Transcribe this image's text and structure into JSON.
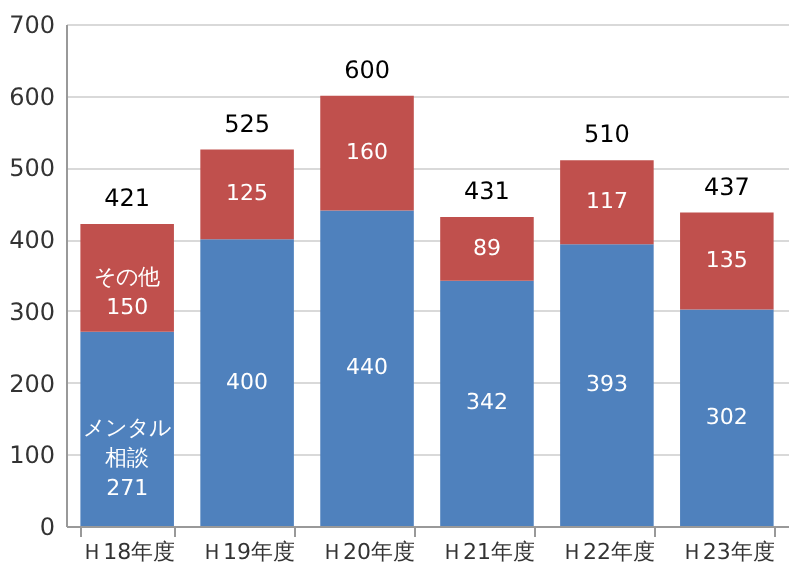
{
  "chart_data": {
    "type": "bar",
    "stacked": true,
    "categories": [
      "Ｈ18年度",
      "Ｈ19年度",
      "Ｈ20年度",
      "Ｈ21年度",
      "Ｈ22年度",
      "Ｈ23年度"
    ],
    "series": [
      {
        "name": "メンタル相談",
        "color": "#4f81bd",
        "values": [
          271,
          400,
          440,
          342,
          393,
          302
        ]
      },
      {
        "name": "その他",
        "color": "#c0504d",
        "values": [
          150,
          125,
          160,
          89,
          117,
          135
        ]
      }
    ],
    "totals": [
      "421",
      "525",
      "600",
      "431",
      "510",
      "437"
    ],
    "data_labels": true,
    "ylim": [
      0,
      700
    ],
    "yticks": [
      0,
      100,
      200,
      300,
      400,
      500,
      600,
      700
    ],
    "grid": "y",
    "legend": false
  }
}
